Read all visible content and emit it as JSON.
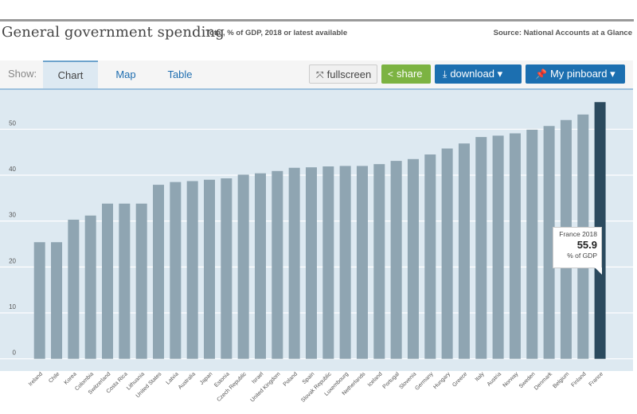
{
  "header": {
    "title": "General government spending",
    "subtitle": "Total, % of GDP, 2018 or latest available",
    "source": "Source: National Accounts at a Glance"
  },
  "toolbar": {
    "show_label": "Show:",
    "tabs": [
      {
        "label": "Chart",
        "active": true
      },
      {
        "label": "Map",
        "active": false
      },
      {
        "label": "Table",
        "active": false
      }
    ],
    "fullscreen_label": "fullscreen",
    "share_label": "share",
    "download_label": "download ▾",
    "pinboard_label": "My pinboard ▾",
    "icons": {
      "fullscreen": "expand-arrows-icon",
      "share": "share-icon",
      "download": "download-icon",
      "pinboard": "pin-icon"
    }
  },
  "colors": {
    "bar": "#8fa5b2",
    "highlight": "#2b4a5e",
    "plot_bg": "#dde9f1",
    "gridline": "#ffffff",
    "share_button": "#7cb342",
    "primary_button": "#1c6fb0"
  },
  "tooltip": {
    "name": "France 2018",
    "value": "55.9",
    "unit": "% of GDP"
  },
  "chart_data": {
    "type": "bar",
    "title": "General government spending",
    "subtitle": "Total, % of GDP, 2018 or latest available",
    "xlabel": "",
    "ylabel": "",
    "ylim": [
      0,
      58
    ],
    "yticks": [
      0,
      10,
      20,
      30,
      40,
      50
    ],
    "grid": true,
    "legend": "none",
    "highlighted": "France",
    "categories": [
      "Ireland",
      "Chile",
      "Korea",
      "Colombia",
      "Switzerland",
      "Costa Rica",
      "Lithuania",
      "United States",
      "Latvia",
      "Australia",
      "Japan",
      "Estonia",
      "Czech Republic",
      "Israel",
      "United Kingdom",
      "Poland",
      "Spain",
      "Slovak Republic",
      "Luxembourg",
      "Netherlands",
      "Iceland",
      "Portugal",
      "Slovenia",
      "Germany",
      "Hungary",
      "Greece",
      "Italy",
      "Austria",
      "Norway",
      "Sweden",
      "Denmark",
      "Belgium",
      "Finland",
      "France"
    ],
    "values": [
      25.4,
      25.4,
      30.3,
      31.2,
      33.8,
      33.8,
      33.8,
      37.9,
      38.5,
      38.7,
      39.0,
      39.3,
      40.1,
      40.4,
      40.9,
      41.6,
      41.7,
      41.9,
      42.0,
      42.0,
      42.4,
      43.1,
      43.5,
      44.5,
      45.8,
      46.9,
      48.3,
      48.6,
      49.1,
      49.9,
      50.7,
      52.0,
      53.2,
      55.9
    ]
  }
}
